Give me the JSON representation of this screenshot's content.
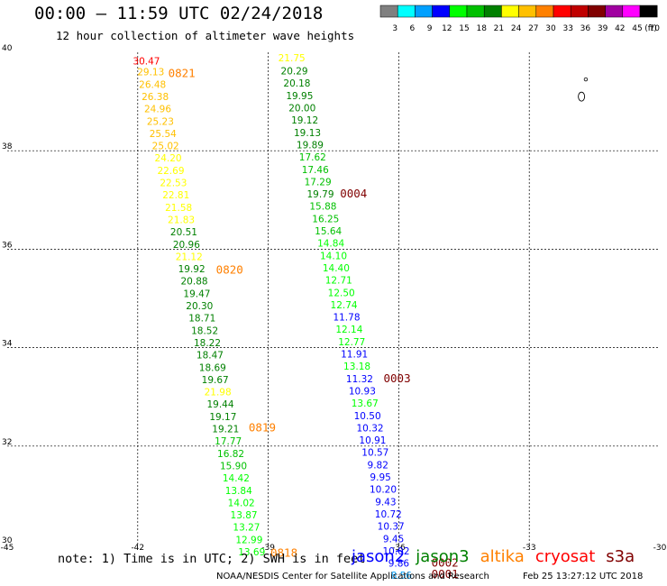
{
  "header": {
    "title": "00:00 – 11:59 UTC 02/24/2018",
    "subtitle": "12 hour collection of altimeter wave heights"
  },
  "colorbar": {
    "unit": "(ft)",
    "bins": [
      {
        "color": "#808080",
        "label": "3"
      },
      {
        "color": "#00ffff",
        "label": "6"
      },
      {
        "color": "#00a0ff",
        "label": "9"
      },
      {
        "color": "#0000ff",
        "label": "12"
      },
      {
        "color": "#00ff00",
        "label": "15"
      },
      {
        "color": "#00c000",
        "label": "18"
      },
      {
        "color": "#008000",
        "label": "21"
      },
      {
        "color": "#ffff00",
        "label": "24"
      },
      {
        "color": "#ffc000",
        "label": "27"
      },
      {
        "color": "#ff8000",
        "label": "30"
      },
      {
        "color": "#ff0000",
        "label": "33"
      },
      {
        "color": "#c00000",
        "label": "36"
      },
      {
        "color": "#800000",
        "label": "39"
      },
      {
        "color": "#a000a0",
        "label": "42"
      },
      {
        "color": "#ff00ff",
        "label": "45"
      },
      {
        "color": "#000000",
        "label": "70"
      }
    ]
  },
  "map": {
    "lon_range": [
      -45,
      -30
    ],
    "lat_range": [
      30,
      40
    ],
    "x_ticks": [
      {
        "value": -45,
        "label": "-45"
      },
      {
        "value": -42,
        "label": "-42"
      },
      {
        "value": -39,
        "label": "-39"
      },
      {
        "value": -36,
        "label": "-36"
      },
      {
        "value": -33,
        "label": "-33"
      },
      {
        "value": -30,
        "label": "-30"
      }
    ],
    "y_ticks": [
      {
        "value": 30,
        "label": "30"
      },
      {
        "value": 32,
        "label": "32"
      },
      {
        "value": 34,
        "label": "34"
      },
      {
        "value": 36,
        "label": "36"
      },
      {
        "value": 38,
        "label": "38"
      },
      {
        "value": 40,
        "label": "40"
      }
    ],
    "grid": "dashed"
  },
  "chart_data": {
    "type": "scatter",
    "title": "12 hour collection of altimeter wave heights",
    "units": "SWH (ft), time UTC",
    "xlim": [
      -45,
      -30
    ],
    "ylim": [
      30,
      40
    ],
    "tracks": [
      {
        "name": "track A",
        "points": [
          {
            "lon": -41.8,
            "lat": 39.75,
            "swh": "30.47",
            "color": "#ff0000"
          },
          {
            "lon": -41.7,
            "lat": 39.53,
            "swh": "29.13",
            "color": "#ffc000"
          },
          {
            "lon": -41.66,
            "lat": 39.28,
            "swh": "26.48",
            "color": "#ffc000"
          },
          {
            "lon": -41.6,
            "lat": 39.03,
            "swh": "26.38",
            "color": "#ffc000"
          },
          {
            "lon": -41.54,
            "lat": 38.78,
            "swh": "24.96",
            "color": "#ffc000"
          },
          {
            "lon": -41.48,
            "lat": 38.53,
            "swh": "25.23",
            "color": "#ffc000"
          },
          {
            "lon": -41.42,
            "lat": 38.28,
            "swh": "25.54",
            "color": "#ffc000"
          },
          {
            "lon": -41.36,
            "lat": 38.03,
            "swh": "25.02",
            "color": "#ffc000"
          },
          {
            "lon": -41.3,
            "lat": 37.78,
            "swh": "24.20",
            "color": "#ffff00"
          },
          {
            "lon": -41.24,
            "lat": 37.53,
            "swh": "22.69",
            "color": "#ffff00"
          },
          {
            "lon": -41.18,
            "lat": 37.28,
            "swh": "22.53",
            "color": "#ffff00"
          },
          {
            "lon": -41.12,
            "lat": 37.03,
            "swh": "22.81",
            "color": "#ffff00"
          },
          {
            "lon": -41.06,
            "lat": 36.78,
            "swh": "21.58",
            "color": "#ffff00"
          },
          {
            "lon": -41.0,
            "lat": 36.53,
            "swh": "21.83",
            "color": "#ffff00"
          },
          {
            "lon": -40.94,
            "lat": 36.28,
            "swh": "20.51",
            "color": "#008000"
          },
          {
            "lon": -40.88,
            "lat": 36.03,
            "swh": "20.96",
            "color": "#008000"
          },
          {
            "lon": -40.82,
            "lat": 35.78,
            "swh": "21.12",
            "color": "#ffff00"
          },
          {
            "lon": -40.76,
            "lat": 35.53,
            "swh": "19.92",
            "color": "#008000"
          },
          {
            "lon": -40.7,
            "lat": 35.28,
            "swh": "20.88",
            "color": "#008000"
          },
          {
            "lon": -40.64,
            "lat": 35.03,
            "swh": "19.47",
            "color": "#008000"
          },
          {
            "lon": -40.58,
            "lat": 34.78,
            "swh": "20.30",
            "color": "#008000"
          },
          {
            "lon": -40.52,
            "lat": 34.53,
            "swh": "18.71",
            "color": "#008000"
          },
          {
            "lon": -40.46,
            "lat": 34.28,
            "swh": "18.52",
            "color": "#008000"
          },
          {
            "lon": -40.4,
            "lat": 34.03,
            "swh": "18.22",
            "color": "#008000"
          },
          {
            "lon": -40.34,
            "lat": 33.78,
            "swh": "18.47",
            "color": "#008000"
          },
          {
            "lon": -40.28,
            "lat": 33.53,
            "swh": "18.69",
            "color": "#008000"
          },
          {
            "lon": -40.22,
            "lat": 33.28,
            "swh": "19.67",
            "color": "#008000"
          },
          {
            "lon": -40.16,
            "lat": 33.03,
            "swh": "21.98",
            "color": "#ffff00"
          },
          {
            "lon": -40.1,
            "lat": 32.78,
            "swh": "19.44",
            "color": "#008000"
          },
          {
            "lon": -40.04,
            "lat": 32.53,
            "swh": "19.17",
            "color": "#008000"
          },
          {
            "lon": -39.98,
            "lat": 32.28,
            "swh": "19.21",
            "color": "#008000"
          },
          {
            "lon": -39.92,
            "lat": 32.03,
            "swh": "17.77",
            "color": "#00c000"
          },
          {
            "lon": -39.86,
            "lat": 31.78,
            "swh": "16.82",
            "color": "#00c000"
          },
          {
            "lon": -39.8,
            "lat": 31.53,
            "swh": "15.90",
            "color": "#00c000"
          },
          {
            "lon": -39.74,
            "lat": 31.28,
            "swh": "14.42",
            "color": "#00ff00"
          },
          {
            "lon": -39.68,
            "lat": 31.03,
            "swh": "13.84",
            "color": "#00ff00"
          },
          {
            "lon": -39.62,
            "lat": 30.78,
            "swh": "14.02",
            "color": "#00ff00"
          },
          {
            "lon": -39.56,
            "lat": 30.53,
            "swh": "13.87",
            "color": "#00ff00"
          },
          {
            "lon": -39.5,
            "lat": 30.28,
            "swh": "13.27",
            "color": "#00ff00"
          },
          {
            "lon": -39.44,
            "lat": 30.03,
            "swh": "12.99",
            "color": "#00ff00"
          },
          {
            "lon": -39.38,
            "lat": 29.78,
            "swh": "13.69",
            "color": "#00ff00"
          }
        ]
      },
      {
        "name": "track B",
        "points": [
          {
            "lon": -38.46,
            "lat": 39.82,
            "swh": "21.75",
            "color": "#ffff00"
          },
          {
            "lon": -38.4,
            "lat": 39.55,
            "swh": "20.29",
            "color": "#008000"
          },
          {
            "lon": -38.34,
            "lat": 39.3,
            "swh": "20.18",
            "color": "#008000"
          },
          {
            "lon": -38.28,
            "lat": 39.05,
            "swh": "19.95",
            "color": "#008000"
          },
          {
            "lon": -38.22,
            "lat": 38.8,
            "swh": "20.00",
            "color": "#008000"
          },
          {
            "lon": -38.16,
            "lat": 38.55,
            "swh": "19.12",
            "color": "#008000"
          },
          {
            "lon": -38.1,
            "lat": 38.3,
            "swh": "19.13",
            "color": "#008000"
          },
          {
            "lon": -38.04,
            "lat": 38.05,
            "swh": "19.89",
            "color": "#008000"
          },
          {
            "lon": -37.98,
            "lat": 37.8,
            "swh": "17.62",
            "color": "#00c000"
          },
          {
            "lon": -37.92,
            "lat": 37.55,
            "swh": "17.46",
            "color": "#00c000"
          },
          {
            "lon": -37.86,
            "lat": 37.3,
            "swh": "17.29",
            "color": "#00c000"
          },
          {
            "lon": -37.8,
            "lat": 37.05,
            "swh": "19.79",
            "color": "#008000"
          },
          {
            "lon": -37.74,
            "lat": 36.8,
            "swh": "15.88",
            "color": "#00c000"
          },
          {
            "lon": -37.68,
            "lat": 36.55,
            "swh": "16.25",
            "color": "#00c000"
          },
          {
            "lon": -37.62,
            "lat": 36.3,
            "swh": "15.64",
            "color": "#00c000"
          },
          {
            "lon": -37.56,
            "lat": 36.05,
            "swh": "14.84",
            "color": "#00ff00"
          },
          {
            "lon": -37.5,
            "lat": 35.8,
            "swh": "14.10",
            "color": "#00ff00"
          },
          {
            "lon": -37.44,
            "lat": 35.55,
            "swh": "14.40",
            "color": "#00ff00"
          },
          {
            "lon": -37.38,
            "lat": 35.3,
            "swh": "12.71",
            "color": "#00ff00"
          },
          {
            "lon": -37.32,
            "lat": 35.05,
            "swh": "12.50",
            "color": "#00ff00"
          },
          {
            "lon": -37.26,
            "lat": 34.8,
            "swh": "12.74",
            "color": "#00ff00"
          },
          {
            "lon": -37.2,
            "lat": 34.55,
            "swh": "11.78",
            "color": "#0000ff"
          },
          {
            "lon": -37.14,
            "lat": 34.3,
            "swh": "12.14",
            "color": "#00ff00"
          },
          {
            "lon": -37.08,
            "lat": 34.05,
            "swh": "12.77",
            "color": "#00ff00"
          },
          {
            "lon": -37.02,
            "lat": 33.8,
            "swh": "11.91",
            "color": "#0000ff"
          },
          {
            "lon": -36.96,
            "lat": 33.55,
            "swh": "13.18",
            "color": "#00ff00"
          },
          {
            "lon": -36.9,
            "lat": 33.3,
            "swh": "11.32",
            "color": "#0000ff"
          },
          {
            "lon": -36.84,
            "lat": 33.05,
            "swh": "10.93",
            "color": "#0000ff"
          },
          {
            "lon": -36.78,
            "lat": 32.8,
            "swh": "13.67",
            "color": "#00ff00"
          },
          {
            "lon": -36.72,
            "lat": 32.55,
            "swh": "10.50",
            "color": "#0000ff"
          },
          {
            "lon": -36.66,
            "lat": 32.3,
            "swh": "10.32",
            "color": "#0000ff"
          },
          {
            "lon": -36.6,
            "lat": 32.05,
            "swh": "10.91",
            "color": "#0000ff"
          },
          {
            "lon": -36.54,
            "lat": 31.8,
            "swh": "10.57",
            "color": "#0000ff"
          },
          {
            "lon": -36.48,
            "lat": 31.55,
            "swh": "9.82",
            "color": "#0000ff"
          },
          {
            "lon": -36.42,
            "lat": 31.3,
            "swh": "9.95",
            "color": "#0000ff"
          },
          {
            "lon": -36.36,
            "lat": 31.05,
            "swh": "10.20",
            "color": "#0000ff"
          },
          {
            "lon": -36.3,
            "lat": 30.8,
            "swh": "9.43",
            "color": "#0000ff"
          },
          {
            "lon": -36.24,
            "lat": 30.55,
            "swh": "10.72",
            "color": "#0000ff"
          },
          {
            "lon": -36.18,
            "lat": 30.3,
            "swh": "10.37",
            "color": "#0000ff"
          },
          {
            "lon": -36.12,
            "lat": 30.05,
            "swh": "9.45",
            "color": "#0000ff"
          },
          {
            "lon": -36.06,
            "lat": 29.8,
            "swh": "10.02",
            "color": "#0000ff"
          },
          {
            "lon": -36.0,
            "lat": 29.55,
            "swh": "9.86",
            "color": "#0000ff"
          },
          {
            "lon": -35.94,
            "lat": 29.3,
            "swh": "8.56",
            "color": "#00a0ff"
          }
        ]
      }
    ],
    "time_labels": [
      {
        "lon": -41.3,
        "lat": 39.5,
        "text": "0821",
        "color": "#ff8000"
      },
      {
        "lon": -40.2,
        "lat": 35.5,
        "text": "0820",
        "color": "#ff8000"
      },
      {
        "lon": -39.45,
        "lat": 32.3,
        "text": "0819",
        "color": "#ff8000"
      },
      {
        "lon": -38.95,
        "lat": 29.75,
        "text": "0818",
        "color": "#ff8000"
      },
      {
        "lon": -37.35,
        "lat": 37.05,
        "text": "0004",
        "color": "#800000"
      },
      {
        "lon": -36.35,
        "lat": 33.3,
        "text": "0003",
        "color": "#800000"
      },
      {
        "lon": -35.25,
        "lat": 29.55,
        "text": "0002",
        "color": "#800000"
      },
      {
        "lon": -35.25,
        "lat": 29.32,
        "text": "0001",
        "color": "#800000"
      }
    ]
  },
  "footer": {
    "note": "note: 1) Time is in UTC; 2) SWH is in feet",
    "legend": [
      {
        "name": "jason2",
        "color": "#0000ff"
      },
      {
        "name": "jason3",
        "color": "#008000"
      },
      {
        "name": "altika",
        "color": "#ff8000"
      },
      {
        "name": "cryosat",
        "color": "#ff0000"
      },
      {
        "name": "s3a",
        "color": "#800000"
      }
    ],
    "credit": "NOAA/NESDIS Center for Satellite Applications and Research",
    "credit_date": "Feb 25 13:27:12 UTC 2018"
  }
}
